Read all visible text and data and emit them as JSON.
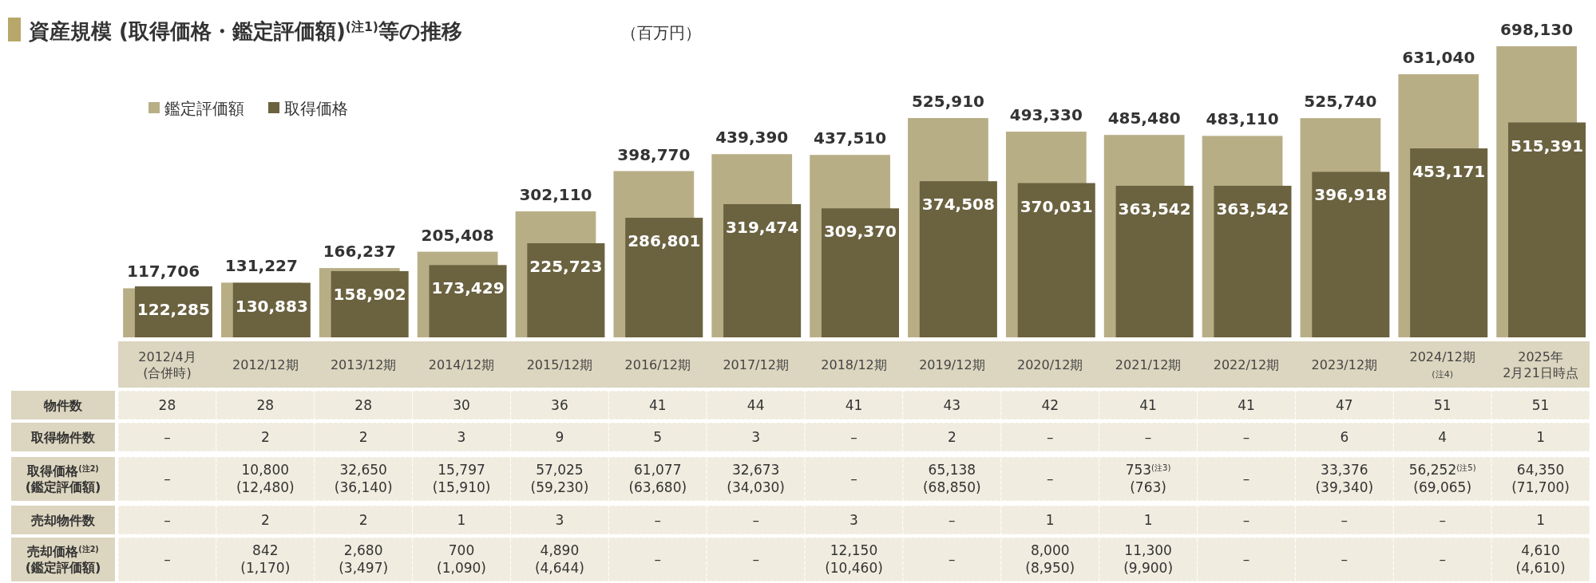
{
  "chart_data": [
    {
      "type": "bar",
      "title": "資産規模 (取得価格・鑑定評価額)$^{(注1)}$等の推移",
      "subtitle": "（百万円）",
      "categories": [
        "2012/4月\n(合併時)",
        "2012/12期",
        "2013/12期",
        "2014/12期",
        "2015/12期",
        "2016/12期",
        "2017/12期",
        "2018/12期",
        "2019/12期",
        "2020/12期",
        "2021/12期",
        "2022/12期",
        "2023/12期",
        "2024/12期\n(注4)",
        "2025年\n2月21日時点"
      ],
      "series": [
        {
          "name": "鑑定評価額",
          "color": "#b8ae86",
          "values": [
            117706,
            131227,
            166237,
            205408,
            302110,
            398770,
            439390,
            437510,
            525910,
            493330,
            485480,
            483110,
            525740,
            631040,
            698130
          ],
          "value_labels": [
            "117,706",
            "131,227",
            "166,237",
            "205,408",
            "302,110",
            "398,770",
            "439,390",
            "437,510",
            "525,910",
            "493,330",
            "485,480",
            "483,110",
            "525,740",
            "631,040",
            "698,130"
          ]
        },
        {
          "name": "取得価格",
          "color": "#6b6240",
          "values": [
            122285,
            130883,
            158902,
            173429,
            225723,
            286801,
            319474,
            309370,
            374508,
            370031,
            363542,
            363542,
            396918,
            453171,
            515391
          ],
          "value_labels": [
            "122,285",
            "130,883",
            "158,902",
            "173,429",
            "225,723",
            "286,801",
            "319,474",
            "309,370",
            "374,508",
            "370,031",
            "363,542",
            "363,542",
            "396,918",
            "453,171",
            "515,391"
          ]
        }
      ],
      "tick_labels": "x",
      "legend": "top left"
    },
    {
      "type": "other",
      "annotations": [
        "物件数",
        "28",
        "28",
        "28",
        "30",
        "36",
        "41",
        "44",
        "41",
        "43",
        "42",
        "41",
        "41",
        "47",
        "51",
        "51",
        "取得物件数",
        "–",
        "2",
        "2",
        "3",
        "9",
        "5",
        "3",
        "–",
        "2",
        "–",
        "–",
        "–",
        "6",
        "4",
        "1",
        "取得価格$^{(注2)}$\n(鑑定評価額)",
        "–",
        "10,800\n(12,480)",
        "32,650\n(36,140)",
        "15,797\n(15,910)",
        "57,025\n(59,230)",
        "61,077\n(63,680)",
        "32,673\n(34,030)",
        "–",
        "65,138\n(68,850)",
        "–",
        "753$^{(注3)}$\n(763)",
        "–",
        "33,376\n(39,340)",
        "56,252$^{(注5)}$\n(69,065)",
        "64,350\n(71,700)",
        "売却物件数",
        "–",
        "2",
        "2",
        "1",
        "3",
        "–",
        "–",
        "3",
        "–",
        "1",
        "1",
        "–",
        "–",
        "–",
        "1",
        "売却価格$^{(注2)}$\n(鑑定評価額)",
        "–",
        "842\n(1,170)",
        "2,680\n(3,497)",
        "700\n(1,090)",
        "4,890\n(4,644)",
        "–",
        "–",
        "12,150\n(10,460)",
        "–",
        "8,000\n(8,950)",
        "11,300\n(9,900)",
        "–",
        "–",
        "–",
        "4,610\n(4,610)"
      ]
    }
  ]
}
